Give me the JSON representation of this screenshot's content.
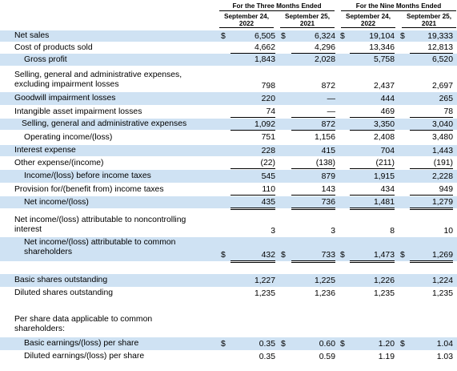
{
  "header": {
    "three_months": "For the Three Months Ended",
    "nine_months": "For the Nine Months Ended",
    "columns": [
      {
        "line1": "September 24,",
        "line2": "2022"
      },
      {
        "line1": "September 25,",
        "line2": "2021"
      },
      {
        "line1": "September 24,",
        "line2": "2022"
      },
      {
        "line1": "September 25,",
        "line2": "2021"
      }
    ]
  },
  "rows": [
    {
      "label": "Net sales",
      "values": [
        "6,505",
        "6,324",
        "19,104",
        "19,333"
      ],
      "dollar": [
        "$",
        "$",
        "$",
        "$"
      ]
    },
    {
      "label": "Cost of products sold",
      "values": [
        "4,662",
        "4,296",
        "13,346",
        "12,813"
      ]
    },
    {
      "label": "Gross profit",
      "values": [
        "1,843",
        "2,028",
        "5,758",
        "6,520"
      ]
    },
    {
      "label": "Selling, general and administrative expenses,",
      "label2": "excluding impairment losses",
      "values": [
        "798",
        "872",
        "2,437",
        "2,697"
      ]
    },
    {
      "label": "Goodwill impairment losses",
      "values": [
        "220",
        "—",
        "444",
        "265"
      ]
    },
    {
      "label": "Intangible asset impairment losses",
      "values": [
        "74",
        "—",
        "469",
        "78"
      ]
    },
    {
      "label": "Selling, general and administrative expenses",
      "values": [
        "1,092",
        "872",
        "3,350",
        "3,040"
      ]
    },
    {
      "label": "Operating income/(loss)",
      "values": [
        "751",
        "1,156",
        "2,408",
        "3,480"
      ]
    },
    {
      "label": "Interest expense",
      "values": [
        "228",
        "415",
        "704",
        "1,443"
      ]
    },
    {
      "label": "Other expense/(income)",
      "values": [
        "(22)",
        "(138)",
        "(211)",
        "(191)"
      ]
    },
    {
      "label": "Income/(loss) before income taxes",
      "values": [
        "545",
        "879",
        "1,915",
        "2,228"
      ]
    },
    {
      "label": "Provision for/(benefit from) income taxes",
      "values": [
        "110",
        "143",
        "434",
        "949"
      ]
    },
    {
      "label": "Net income/(loss)",
      "values": [
        "435",
        "736",
        "1,481",
        "1,279"
      ]
    },
    {
      "label": "Net income/(loss) attributable to noncontrolling",
      "label2": "interest",
      "values": [
        "3",
        "3",
        "8",
        "10"
      ]
    },
    {
      "label": "Net income/(loss) attributable to common",
      "label2": "shareholders",
      "values": [
        "432",
        "733",
        "1,473",
        "1,269"
      ],
      "dollar": [
        "$",
        "$",
        "$",
        "$"
      ]
    },
    {
      "label": "Basic shares outstanding",
      "values": [
        "1,227",
        "1,225",
        "1,226",
        "1,224"
      ]
    },
    {
      "label": "Diluted shares outstanding",
      "values": [
        "1,235",
        "1,236",
        "1,235",
        "1,235"
      ]
    },
    {
      "label": "Per share data applicable to common",
      "label2": "shareholders:",
      "values": [
        "",
        "",
        "",
        ""
      ]
    },
    {
      "label": "Basic earnings/(loss) per share",
      "values": [
        "0.35",
        "0.60",
        "1.20",
        "1.04"
      ],
      "dollar": [
        "$",
        "$",
        "$",
        "$"
      ]
    },
    {
      "label": "Diluted earnings/(loss) per share",
      "values": [
        "0.35",
        "0.59",
        "1.19",
        "1.03"
      ]
    }
  ]
}
